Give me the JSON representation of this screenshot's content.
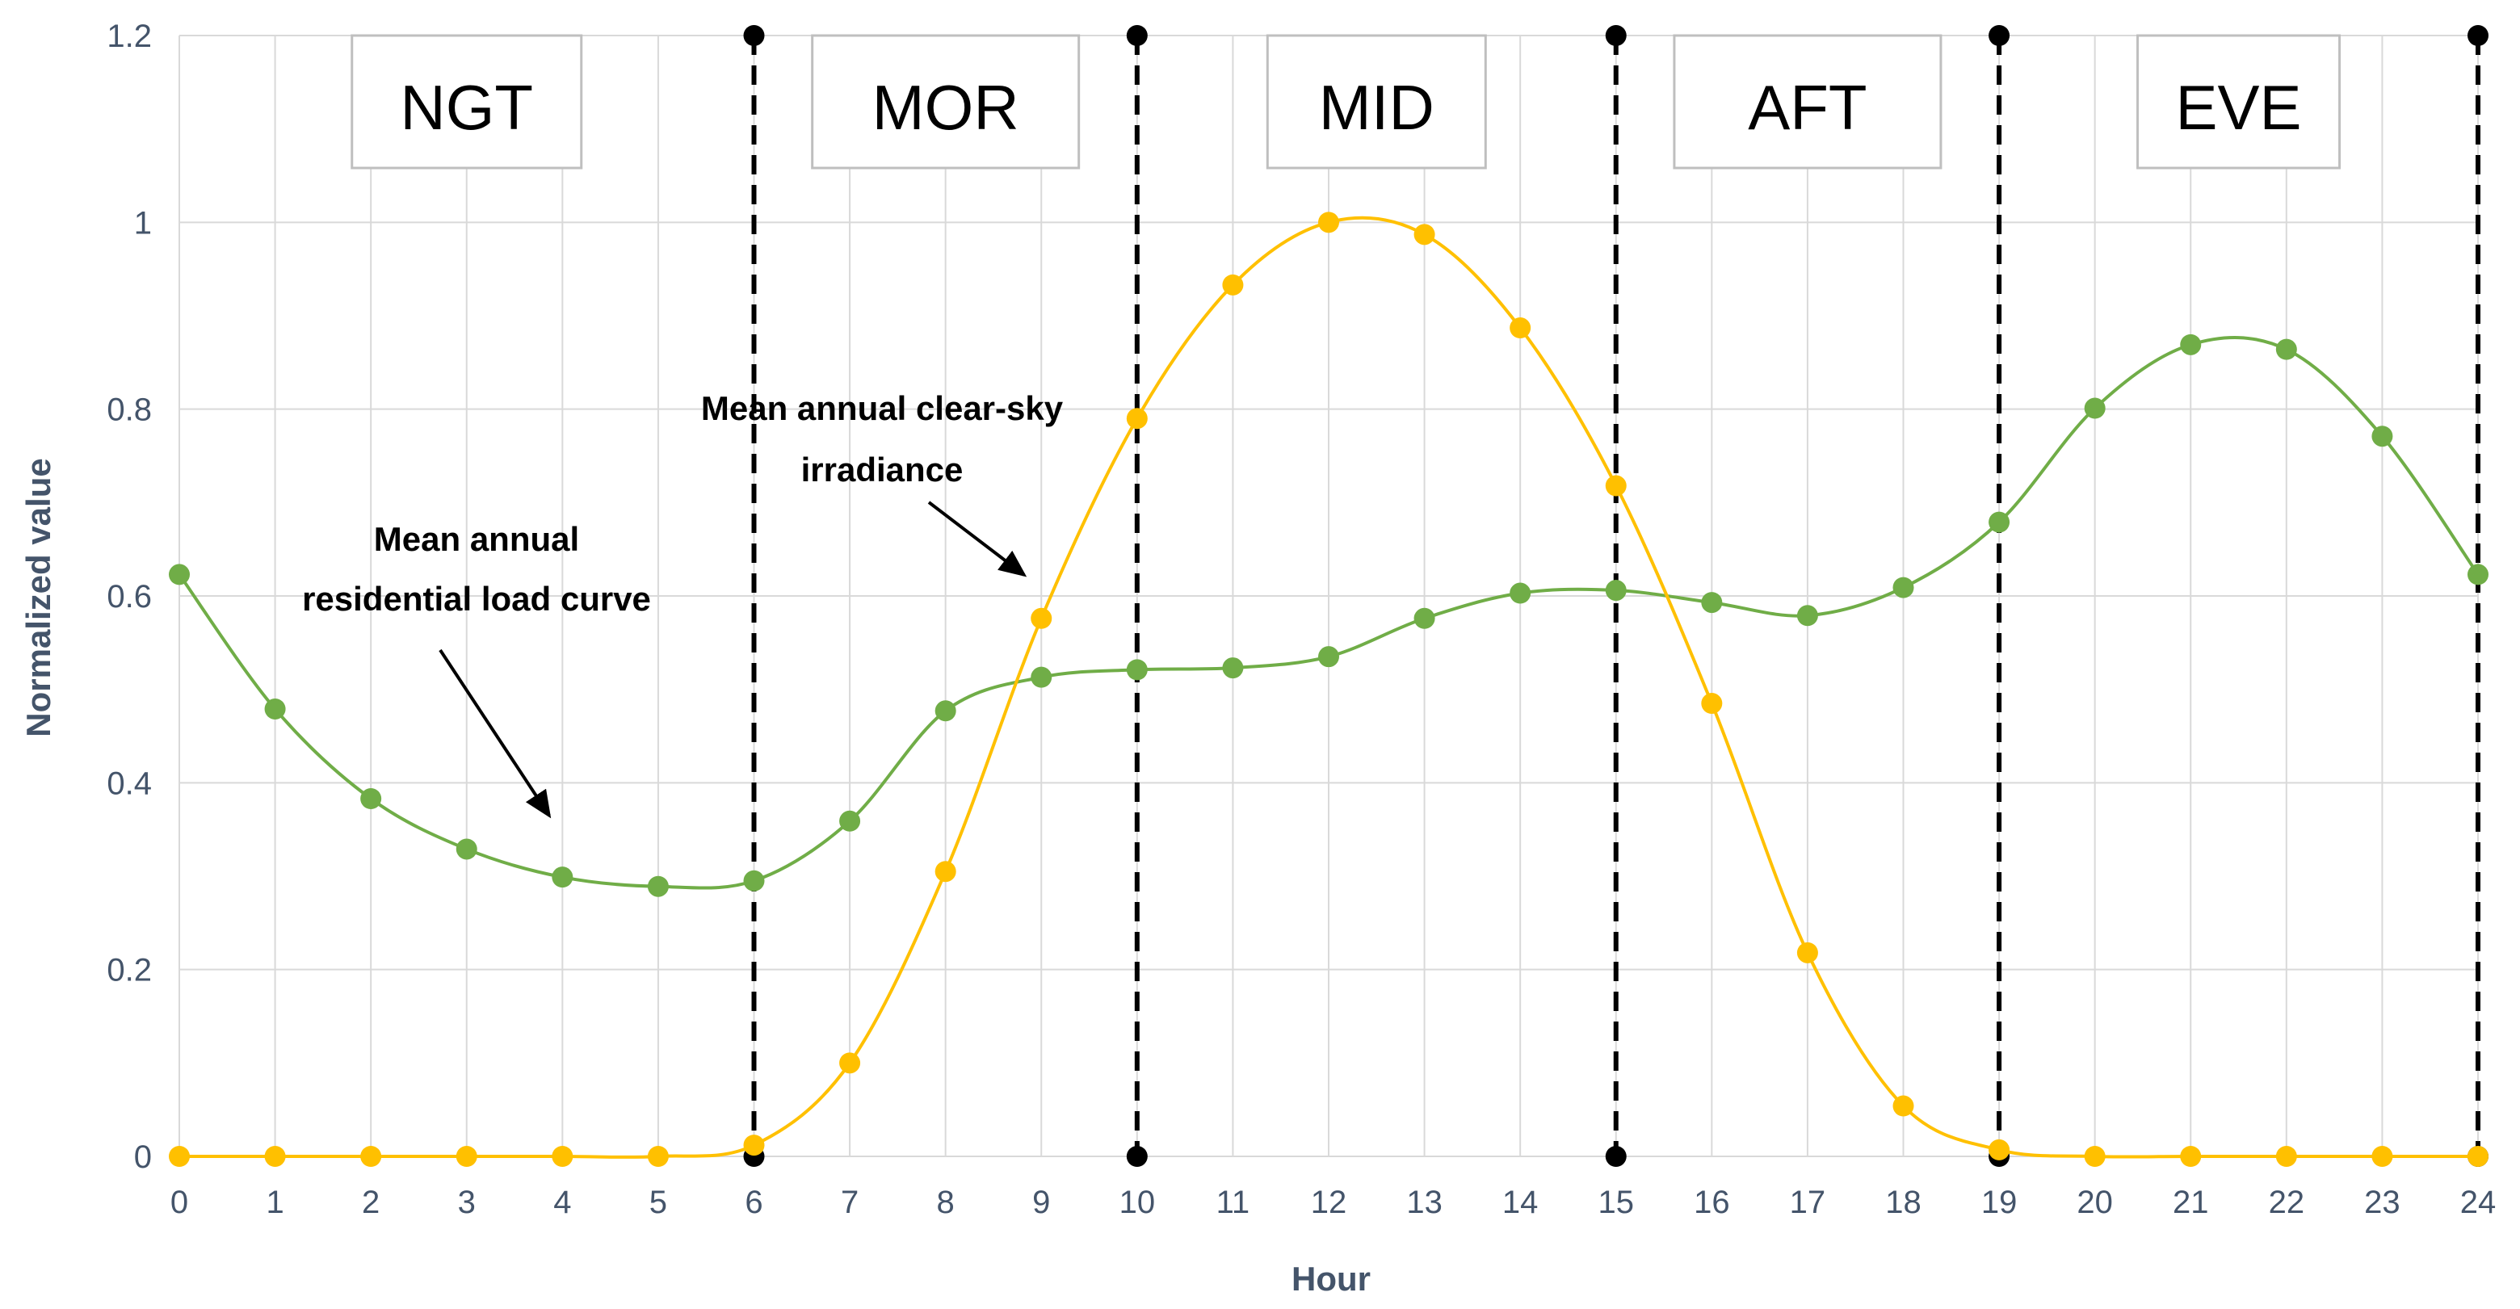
{
  "chart_data": {
    "type": "line",
    "title": "",
    "xlabel": "Hour",
    "ylabel": "Normalized value",
    "xlim": [
      0,
      24
    ],
    "ylim": [
      0,
      1.2
    ],
    "x_ticks": [
      0,
      1,
      2,
      3,
      4,
      5,
      6,
      7,
      8,
      9,
      10,
      11,
      12,
      13,
      14,
      15,
      16,
      17,
      18,
      19,
      20,
      21,
      22,
      23,
      24
    ],
    "y_ticks": [
      0,
      0.2,
      0.4,
      0.6,
      0.8,
      1,
      1.2
    ],
    "y_tick_labels": [
      "0",
      "0.2",
      "0.4",
      "0.6",
      "0.8",
      "1",
      "1.2"
    ],
    "grid": true,
    "x": [
      0,
      1,
      2,
      3,
      4,
      5,
      6,
      7,
      8,
      9,
      10,
      11,
      12,
      13,
      14,
      15,
      16,
      17,
      18,
      19,
      20,
      21,
      22,
      23,
      24
    ],
    "series": [
      {
        "name": "Mean annual residential load curve",
        "color": "#70ad47",
        "values": [
          0.623,
          0.479,
          0.383,
          0.329,
          0.299,
          0.289,
          0.295,
          0.359,
          0.477,
          0.513,
          0.521,
          0.523,
          0.535,
          0.576,
          0.603,
          0.606,
          0.593,
          0.579,
          0.609,
          0.679,
          0.801,
          0.869,
          0.864,
          0.771,
          0.623
        ]
      },
      {
        "name": "Mean annual clear-sky irradiance",
        "color": "#ffc000",
        "values": [
          0,
          0,
          0,
          0,
          0,
          0,
          0.012,
          0.1,
          0.305,
          0.576,
          0.79,
          0.933,
          1.0,
          0.987,
          0.887,
          0.718,
          0.485,
          0.218,
          0.054,
          0.007,
          0,
          0,
          0,
          0,
          0
        ]
      }
    ],
    "period_boundaries": [
      6,
      10,
      15,
      19,
      24
    ],
    "periods": [
      {
        "label": "NGT",
        "center": 3
      },
      {
        "label": "MOR",
        "center": 8
      },
      {
        "label": "MID",
        "center": 12.5
      },
      {
        "label": "AFT",
        "center": 17
      },
      {
        "label": "EVE",
        "center": 21.5
      }
    ],
    "annotations": [
      {
        "id": "load",
        "lines": [
          "Mean annual",
          "residential load curve"
        ]
      },
      {
        "id": "irradiance",
        "lines": [
          "Mean annual clear-sky",
          "irradiance"
        ]
      }
    ]
  }
}
